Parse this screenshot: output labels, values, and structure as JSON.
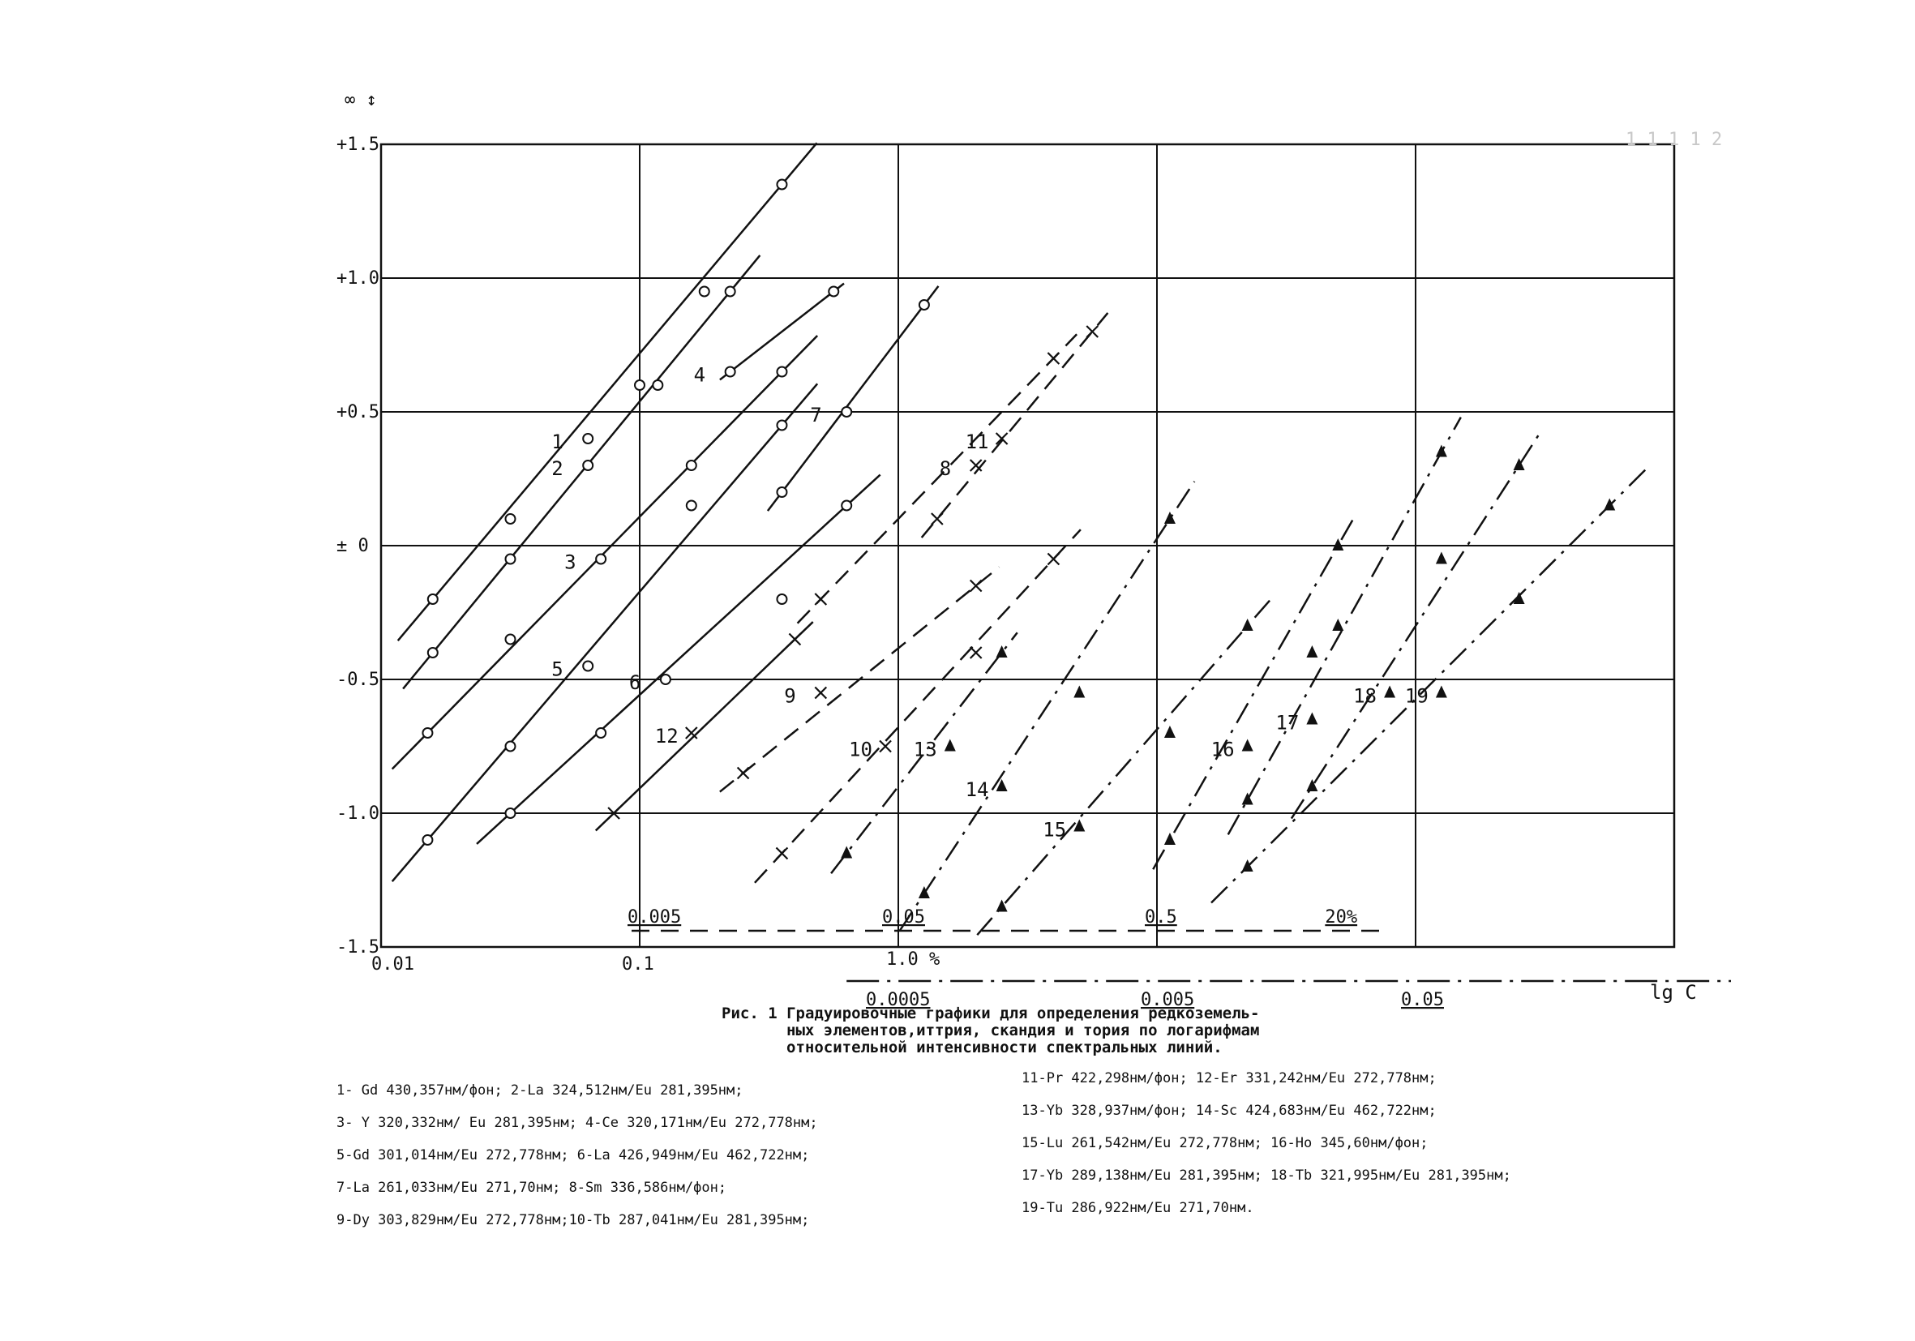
{
  "chart_data": {
    "type": "line",
    "y_axis_label": "∞ \n↕",
    "y_ticks": [
      "+1.5",
      "+1.0",
      "+0.5",
      "± 0",
      "-0.5",
      "-1.0",
      "-1.5"
    ],
    "y_tick_values": [
      1.5,
      1.0,
      0.5,
      0,
      -0.5,
      -1.0,
      -1.5
    ],
    "ylim": [
      -1.5,
      1.5
    ],
    "x_ticks_main": [
      "0.01",
      "0.1"
    ],
    "x_scale_percent": {
      "labels": [
        "0.005",
        "0.05",
        "0.5",
        "20%"
      ],
      "unit_label": "1.0 %"
    },
    "x_scale_lower": {
      "labels": [
        "0.0005",
        "0.005",
        "0.05"
      ]
    },
    "x_axis_label": "lg C",
    "top_right_mark": "1 1 1 1 2",
    "grid": true,
    "series": [
      {
        "name": "1",
        "marker": "circle",
        "style": "solid",
        "points": [
          [
            0.2,
            -0.2
          ],
          [
            0.5,
            0.1
          ],
          [
            0.8,
            0.4
          ],
          [
            1.0,
            0.6
          ],
          [
            1.25,
            0.95
          ],
          [
            1.55,
            1.35
          ]
        ]
      },
      {
        "name": "2",
        "marker": "circle",
        "style": "solid",
        "points": [
          [
            0.2,
            -0.4
          ],
          [
            0.5,
            -0.05
          ],
          [
            0.8,
            0.3
          ],
          [
            1.07,
            0.6
          ],
          [
            1.35,
            0.95
          ]
        ]
      },
      {
        "name": "3",
        "marker": "circle",
        "style": "solid",
        "points": [
          [
            0.18,
            -0.7
          ],
          [
            0.5,
            -0.35
          ],
          [
            0.85,
            -0.05
          ],
          [
            1.2,
            0.3
          ],
          [
            1.55,
            0.65
          ]
        ]
      },
      {
        "name": "4",
        "marker": "circle",
        "style": "solid",
        "points": [
          [
            1.35,
            0.65
          ],
          [
            1.75,
            0.95
          ]
        ]
      },
      {
        "name": "5",
        "marker": "circle",
        "style": "solid",
        "points": [
          [
            0.18,
            -1.1
          ],
          [
            0.5,
            -0.75
          ],
          [
            0.8,
            -0.45
          ],
          [
            1.2,
            0.15
          ],
          [
            1.55,
            0.45
          ]
        ]
      },
      {
        "name": "6",
        "marker": "circle",
        "style": "solid",
        "points": [
          [
            0.5,
            -1.0
          ],
          [
            0.85,
            -0.7
          ],
          [
            1.1,
            -0.5
          ],
          [
            1.55,
            -0.2
          ],
          [
            1.8,
            0.15
          ]
        ]
      },
      {
        "name": "7",
        "marker": "circle",
        "style": "solid",
        "points": [
          [
            1.55,
            0.2
          ],
          [
            1.8,
            0.5
          ],
          [
            2.1,
            0.9
          ]
        ]
      },
      {
        "name": "8",
        "marker": "cross",
        "style": "dashed",
        "points": [
          [
            1.7,
            -0.2
          ],
          [
            2.3,
            0.3
          ],
          [
            2.6,
            0.7
          ]
        ]
      },
      {
        "name": "9",
        "marker": "cross",
        "style": "dashed",
        "points": [
          [
            1.4,
            -0.85
          ],
          [
            1.7,
            -0.55
          ],
          [
            2.3,
            -0.15
          ]
        ]
      },
      {
        "name": "10",
        "marker": "cross",
        "style": "dashed",
        "points": [
          [
            1.55,
            -1.15
          ],
          [
            1.95,
            -0.75
          ],
          [
            2.3,
            -0.4
          ],
          [
            2.6,
            -0.05
          ]
        ]
      },
      {
        "name": "11",
        "marker": "cross",
        "style": "dashed",
        "points": [
          [
            2.15,
            0.1
          ],
          [
            2.4,
            0.4
          ],
          [
            2.75,
            0.8
          ]
        ]
      },
      {
        "name": "12",
        "marker": "cross",
        "style": "solid",
        "points": [
          [
            0.9,
            -1.0
          ],
          [
            1.2,
            -0.7
          ],
          [
            1.6,
            -0.35
          ]
        ]
      },
      {
        "name": "13",
        "marker": "triangle",
        "style": "dashdot",
        "points": [
          [
            1.8,
            -1.15
          ],
          [
            2.2,
            -0.75
          ],
          [
            2.4,
            -0.4
          ]
        ]
      },
      {
        "name": "14",
        "marker": "triangle",
        "style": "dashdot",
        "points": [
          [
            2.1,
            -1.3
          ],
          [
            2.4,
            -0.9
          ],
          [
            2.7,
            -0.55
          ],
          [
            3.05,
            0.1
          ]
        ]
      },
      {
        "name": "15",
        "marker": "triangle",
        "style": "dashdot",
        "points": [
          [
            2.4,
            -1.35
          ],
          [
            2.7,
            -1.05
          ],
          [
            3.05,
            -0.7
          ],
          [
            3.35,
            -0.3
          ]
        ]
      },
      {
        "name": "16",
        "marker": "triangle",
        "style": "dashdot",
        "points": [
          [
            3.05,
            -1.1
          ],
          [
            3.35,
            -0.75
          ],
          [
            3.6,
            -0.4
          ],
          [
            3.7,
            0.0
          ]
        ]
      },
      {
        "name": "17",
        "marker": "triangle",
        "style": "dashdot",
        "points": [
          [
            3.35,
            -0.95
          ],
          [
            3.6,
            -0.65
          ],
          [
            3.7,
            -0.3
          ],
          [
            4.1,
            0.35
          ]
        ]
      },
      {
        "name": "18",
        "marker": "triangle",
        "style": "dashdot",
        "points": [
          [
            3.6,
            -0.9
          ],
          [
            3.9,
            -0.55
          ],
          [
            4.1,
            -0.05
          ],
          [
            4.4,
            0.3
          ]
        ]
      },
      {
        "name": "19",
        "marker": "triangle",
        "style": "dashdot",
        "points": [
          [
            3.35,
            -1.2
          ],
          [
            4.1,
            -0.55
          ],
          [
            4.4,
            -0.2
          ],
          [
            4.75,
            0.15
          ]
        ]
      }
    ],
    "curve_labels": [
      "1",
      "2",
      "3",
      "4",
      "5",
      "6",
      "7",
      "8",
      "9",
      "10",
      "11",
      "12",
      "13",
      "14",
      "15",
      "16",
      "17",
      "18",
      "19"
    ]
  },
  "caption": {
    "line1": "Рис. 1 Градуировочные графики для определения редкоземель-",
    "line2": "ных элементов,иттрия, скандия и тория по логарифмам",
    "line3": "относительной интенсивности спектральных линий."
  },
  "legend_left": [
    "1- Gd 430,357нм/фон; 2-La 324,512нм/Eu 281,395нм;",
    "3- Y 320,332нм/ Eu 281,395нм; 4-Ce 320,171нм/Eu 272,778нм;",
    "5-Gd 301,014нм/Eu 272,778нм; 6-La 426,949нм/Eu 462,722нм;",
    "7-La 261,033нм/Eu 271,70нм; 8-Sm 336,586нм/фон;",
    "9-Dy 303,829нм/Eu 272,778нм;10-Tb 287,041нм/Eu 281,395нм;"
  ],
  "legend_right": [
    "11-Pr 422,298нм/фон; 12-Er 331,242нм/Eu 272,778нм;",
    "13-Yb 328,937нм/фон; 14-Sc 424,683нм/Eu 462,722нм;",
    "15-Lu 261,542нм/Eu 272,778нм; 16-Ho 345,60нм/фон;",
    "17-Yb 289,138нм/Eu 281,395нм; 18-Tb 321,995нм/Eu 281,395нм;",
    "19-Tu 286,922нм/Eu 271,70нм."
  ]
}
